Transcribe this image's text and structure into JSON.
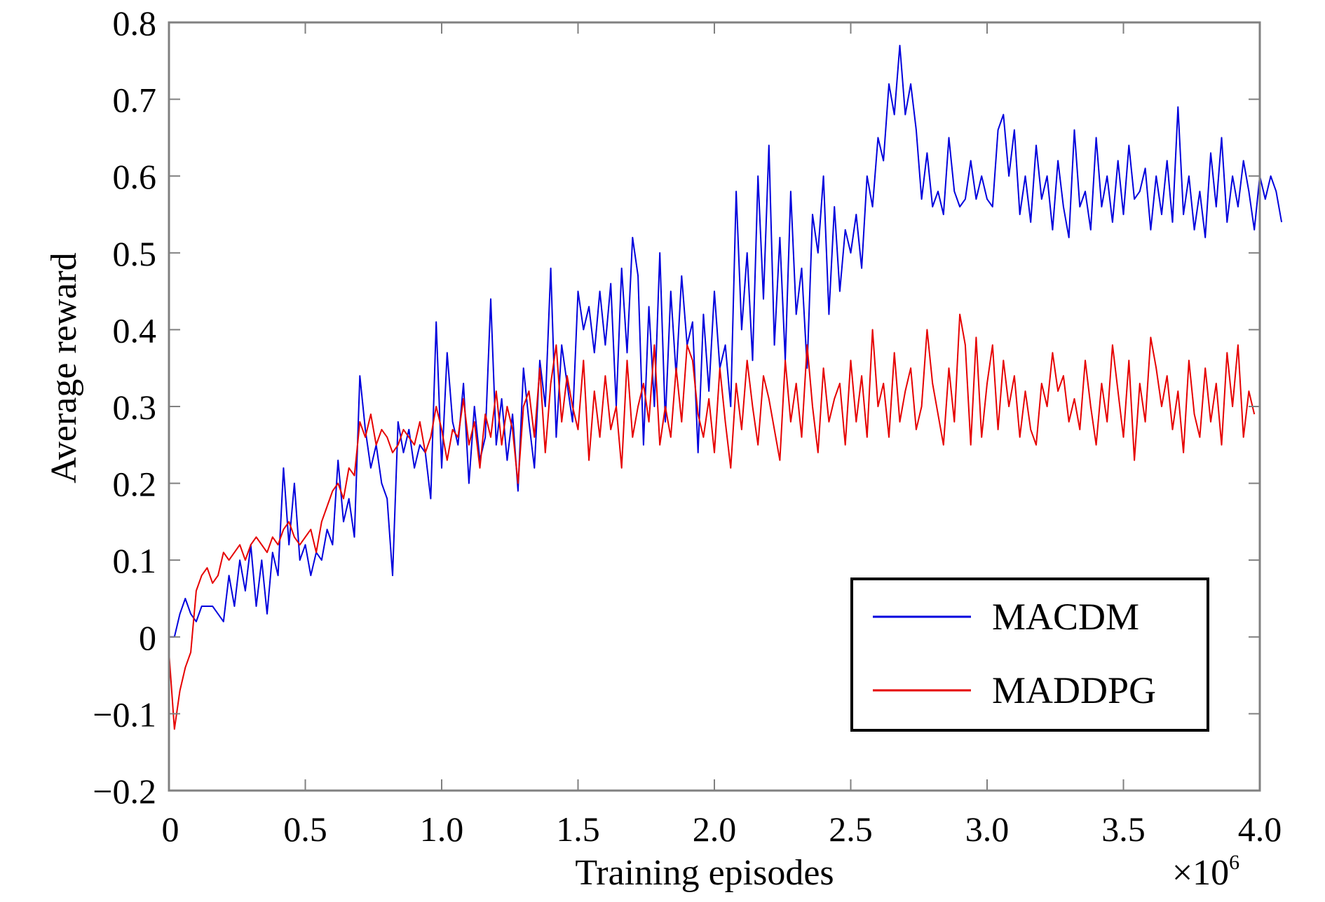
{
  "chart_data": {
    "type": "line",
    "title": "",
    "xlabel": "Training episodes",
    "ylabel": "Average reward",
    "x_multiplier_label": "×10",
    "x_multiplier_exponent": "6",
    "xlim": [
      0,
      4.0
    ],
    "ylim": [
      -0.2,
      0.8
    ],
    "xticks": [
      0,
      0.5,
      1.0,
      1.5,
      2.0,
      2.5,
      3.0,
      3.5,
      4.0
    ],
    "xtick_labels": [
      "0",
      "0.5",
      "1.0",
      "1.5",
      "2.0",
      "2.5",
      "3.0",
      "3.5",
      "4.0"
    ],
    "yticks": [
      -0.2,
      -0.1,
      0,
      0.1,
      0.2,
      0.3,
      0.4,
      0.5,
      0.6,
      0.7,
      0.8
    ],
    "ytick_labels": [
      "−0.2",
      "−0.1",
      "0",
      "0.1",
      "0.2",
      "0.3",
      "0.4",
      "0.5",
      "0.6",
      "0.7",
      "0.8"
    ],
    "grid": false,
    "legend_position": "lower-right",
    "x_step": 0.02,
    "series": [
      {
        "name": "MACDM",
        "color": "#0000dd",
        "values": [
          0.0,
          0.0,
          0.03,
          0.05,
          0.03,
          0.02,
          0.04,
          0.04,
          0.04,
          0.03,
          0.02,
          0.08,
          0.04,
          0.1,
          0.06,
          0.12,
          0.04,
          0.1,
          0.03,
          0.11,
          0.08,
          0.22,
          0.12,
          0.2,
          0.1,
          0.12,
          0.08,
          0.11,
          0.1,
          0.14,
          0.12,
          0.23,
          0.15,
          0.18,
          0.13,
          0.34,
          0.27,
          0.22,
          0.25,
          0.2,
          0.18,
          0.08,
          0.28,
          0.24,
          0.27,
          0.22,
          0.25,
          0.24,
          0.18,
          0.41,
          0.22,
          0.37,
          0.28,
          0.25,
          0.33,
          0.2,
          0.3,
          0.23,
          0.26,
          0.44,
          0.25,
          0.31,
          0.23,
          0.29,
          0.19,
          0.35,
          0.28,
          0.22,
          0.36,
          0.3,
          0.48,
          0.26,
          0.38,
          0.33,
          0.28,
          0.45,
          0.4,
          0.43,
          0.37,
          0.45,
          0.38,
          0.46,
          0.3,
          0.48,
          0.37,
          0.52,
          0.47,
          0.25,
          0.43,
          0.3,
          0.5,
          0.28,
          0.45,
          0.34,
          0.47,
          0.38,
          0.41,
          0.24,
          0.42,
          0.32,
          0.45,
          0.35,
          0.38,
          0.3,
          0.58,
          0.4,
          0.5,
          0.36,
          0.6,
          0.44,
          0.64,
          0.38,
          0.52,
          0.36,
          0.58,
          0.42,
          0.48,
          0.35,
          0.55,
          0.5,
          0.6,
          0.42,
          0.56,
          0.45,
          0.53,
          0.5,
          0.55,
          0.48,
          0.6,
          0.56,
          0.65,
          0.62,
          0.72,
          0.68,
          0.77,
          0.68,
          0.72,
          0.66,
          0.57,
          0.63,
          0.56,
          0.58,
          0.55,
          0.65,
          0.58,
          0.56,
          0.57,
          0.62,
          0.57,
          0.6,
          0.57,
          0.56,
          0.66,
          0.68,
          0.6,
          0.66,
          0.55,
          0.6,
          0.54,
          0.64,
          0.57,
          0.6,
          0.53,
          0.62,
          0.56,
          0.52,
          0.66,
          0.56,
          0.58,
          0.53,
          0.65,
          0.56,
          0.6,
          0.54,
          0.62,
          0.55,
          0.64,
          0.57,
          0.58,
          0.61,
          0.53,
          0.6,
          0.55,
          0.62,
          0.54,
          0.69,
          0.55,
          0.6,
          0.53,
          0.58,
          0.52,
          0.63,
          0.56,
          0.65,
          0.54,
          0.6,
          0.56,
          0.62,
          0.58,
          0.53,
          0.6,
          0.57,
          0.6,
          0.58,
          0.54
        ]
      },
      {
        "name": "MADDPG",
        "color": "#e60000",
        "values": [
          -0.02,
          -0.12,
          -0.07,
          -0.04,
          -0.02,
          0.06,
          0.08,
          0.09,
          0.07,
          0.08,
          0.11,
          0.1,
          0.11,
          0.12,
          0.1,
          0.12,
          0.13,
          0.12,
          0.11,
          0.13,
          0.12,
          0.14,
          0.15,
          0.13,
          0.12,
          0.13,
          0.14,
          0.11,
          0.15,
          0.17,
          0.19,
          0.2,
          0.18,
          0.22,
          0.21,
          0.28,
          0.26,
          0.29,
          0.25,
          0.27,
          0.26,
          0.24,
          0.25,
          0.27,
          0.26,
          0.25,
          0.28,
          0.24,
          0.26,
          0.3,
          0.27,
          0.23,
          0.27,
          0.26,
          0.31,
          0.25,
          0.28,
          0.22,
          0.29,
          0.26,
          0.32,
          0.25,
          0.3,
          0.27,
          0.2,
          0.3,
          0.32,
          0.26,
          0.35,
          0.24,
          0.33,
          0.38,
          0.28,
          0.34,
          0.3,
          0.27,
          0.36,
          0.23,
          0.32,
          0.26,
          0.34,
          0.27,
          0.3,
          0.22,
          0.36,
          0.26,
          0.3,
          0.33,
          0.28,
          0.38,
          0.25,
          0.3,
          0.26,
          0.35,
          0.28,
          0.38,
          0.36,
          0.29,
          0.26,
          0.31,
          0.24,
          0.35,
          0.28,
          0.22,
          0.33,
          0.27,
          0.36,
          0.3,
          0.25,
          0.34,
          0.31,
          0.27,
          0.23,
          0.36,
          0.28,
          0.33,
          0.26,
          0.38,
          0.3,
          0.24,
          0.35,
          0.28,
          0.31,
          0.33,
          0.25,
          0.36,
          0.28,
          0.34,
          0.26,
          0.4,
          0.3,
          0.33,
          0.26,
          0.37,
          0.28,
          0.32,
          0.35,
          0.27,
          0.3,
          0.4,
          0.33,
          0.29,
          0.25,
          0.35,
          0.28,
          0.42,
          0.38,
          0.25,
          0.39,
          0.26,
          0.33,
          0.38,
          0.27,
          0.36,
          0.3,
          0.34,
          0.26,
          0.32,
          0.27,
          0.25,
          0.33,
          0.3,
          0.37,
          0.32,
          0.34,
          0.28,
          0.31,
          0.27,
          0.36,
          0.3,
          0.25,
          0.33,
          0.28,
          0.38,
          0.32,
          0.26,
          0.36,
          0.23,
          0.33,
          0.28,
          0.39,
          0.35,
          0.3,
          0.34,
          0.27,
          0.32,
          0.24,
          0.36,
          0.29,
          0.26,
          0.35,
          0.28,
          0.33,
          0.25,
          0.37,
          0.3,
          0.38,
          0.26,
          0.32,
          0.29
        ]
      }
    ]
  }
}
